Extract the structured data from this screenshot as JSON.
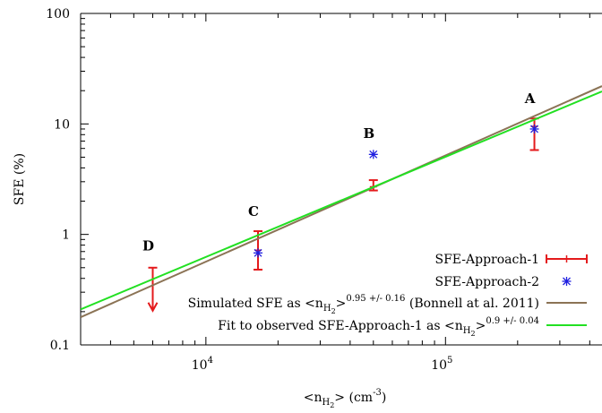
{
  "chart_data": {
    "type": "scatter",
    "xscale": "log",
    "yscale": "log",
    "xlim": [
      3000,
      450000
    ],
    "ylim": [
      0.1,
      100
    ],
    "xlabel": "<nH2> (cm-3)",
    "ylabel": "SFE (%)",
    "x_ticks": [
      10000,
      100000
    ],
    "x_tick_labels": [
      "10^4",
      "10^5"
    ],
    "y_ticks": [
      0.1,
      1,
      10,
      100
    ],
    "y_tick_labels": [
      "0.1",
      "1",
      "10",
      "100"
    ],
    "grid": false,
    "legend_position": "bottom-right",
    "series": [
      {
        "name": "SFE-Approach-1",
        "kind": "errorbar",
        "color": "#e41a1c",
        "points": [
          {
            "x": 6000,
            "y": 0.5,
            "upper_limit": true
          },
          {
            "x": 16500,
            "y": 0.72,
            "y_low": 0.48,
            "y_high": 1.07
          },
          {
            "x": 50000,
            "y": 2.7,
            "y_low": 2.5,
            "y_high": 3.1
          },
          {
            "x": 235000,
            "y": 9.5,
            "y_low": 5.8,
            "y_high": 11.2
          }
        ]
      },
      {
        "name": "SFE-Approach-2",
        "kind": "scatter",
        "color": "#1f1fe0",
        "points": [
          {
            "x": 16500,
            "y": 0.68
          },
          {
            "x": 50000,
            "y": 5.3
          },
          {
            "x": 235000,
            "y": 9.0
          }
        ]
      },
      {
        "name": "Simulated SFE as <nH2>^0.95 +/- 0.16 (Bonnell at al. 2011)",
        "kind": "line",
        "color": "#8b7355",
        "points": [
          {
            "x": 3000,
            "y": 0.178
          },
          {
            "x": 450000,
            "y": 22.0
          }
        ]
      },
      {
        "name": "Fit to observed SFE-Approach-1 as <nH2>^0.9 +/- 0.04",
        "kind": "line",
        "color": "#22e022",
        "points": [
          {
            "x": 3000,
            "y": 0.21
          },
          {
            "x": 450000,
            "y": 19.7
          }
        ]
      }
    ],
    "annotations": [
      {
        "text": "A",
        "x": 235000,
        "y": 17
      },
      {
        "text": "B",
        "x": 50000,
        "y": 8.2
      },
      {
        "text": "C",
        "x": 16500,
        "y": 1.62
      },
      {
        "text": "D",
        "x": 6000,
        "y": 0.79
      }
    ]
  },
  "legend": [
    {
      "label": "SFE-Approach-1",
      "symbol": "errorbar",
      "color": "#e41a1c"
    },
    {
      "label": "SFE-Approach-2",
      "symbol": "star",
      "color": "#1f1fe0"
    },
    {
      "label_prefix": "Simulated SFE as <n",
      "label_sub": "H",
      "label_subsub": "2",
      "label_mid": ">",
      "label_sup": "0.95 +/- 0.16",
      "label_suffix": " (Bonnell at al. 2011)",
      "symbol": "line",
      "color": "#8b7355"
    },
    {
      "label_prefix": "Fit to observed SFE-Approach-1 as <n",
      "label_sub": "H",
      "label_subsub": "2",
      "label_mid": ">",
      "label_sup": "0.9 +/- 0.04",
      "label_suffix": "",
      "symbol": "line",
      "color": "#22e022"
    }
  ],
  "axis_text": {
    "ylabel": "SFE (%)",
    "xlabel_prefix": "<n",
    "xlabel_sub": "H",
    "xlabel_subsub": "2",
    "xlabel_suffix": "> (cm",
    "xlabel_sup": "-3",
    "xlabel_close": ")",
    "x_tick_base": "10",
    "x_tick_exps": [
      "4",
      "5"
    ]
  }
}
